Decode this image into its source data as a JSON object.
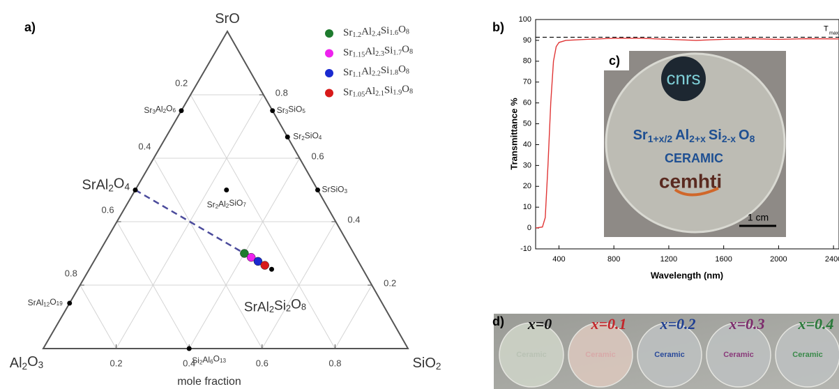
{
  "panel_labels": {
    "a": "a)",
    "b": "b)",
    "c": "c)",
    "d": "d)"
  },
  "chart_data": [
    {
      "type": "ternary",
      "vertices": {
        "top": "SrO",
        "left": "Al2O3",
        "right": "SiO2"
      },
      "ticks": [
        0.2,
        0.4,
        0.6,
        0.8
      ],
      "axis_label": "mole fraction",
      "compounds": [
        {
          "name": "SrAl2O4",
          "SrO": 0.5,
          "Al2O3": 0.5,
          "SiO2": 0
        },
        {
          "name": "Sr3Al2O6",
          "SrO": 0.75,
          "Al2O3": 0.25,
          "SiO2": 0
        },
        {
          "name": "SrAl12O19",
          "SrO": 0.143,
          "Al2O3": 0.857,
          "SiO2": 0
        },
        {
          "name": "Sr3SiO5",
          "SrO": 0.75,
          "Al2O3": 0,
          "SiO2": 0.25
        },
        {
          "name": "Sr2SiO4",
          "SrO": 0.667,
          "Al2O3": 0,
          "SiO2": 0.333
        },
        {
          "name": "SrSiO3",
          "SrO": 0.5,
          "Al2O3": 0,
          "SiO2": 0.5
        },
        {
          "name": "Sr2Al2SiO7",
          "SrO": 0.5,
          "Al2O3": 0.25,
          "SiO2": 0.25
        },
        {
          "name": "Si2Al6O13",
          "SrO": 0,
          "Al2O3": 0.6,
          "SiO2": 0.4
        },
        {
          "name": "SrAl2Si2O8",
          "SrO": 0.25,
          "Al2O3": 0.25,
          "SiO2": 0.5
        }
      ],
      "series": [
        {
          "name": "Sr1.2Al2.4Si1.6O8",
          "color": "#1e7b2e",
          "SrO": 0.3,
          "Al2O3": 0.3,
          "SiO2": 0.4
        },
        {
          "name": "Sr1.15Al2.3Si1.7O8",
          "color": "#ee22ee",
          "SrO": 0.2875,
          "Al2O3": 0.2875,
          "SiO2": 0.425
        },
        {
          "name": "Sr1.1Al2.2Si1.8O8",
          "color": "#1a2ad0",
          "SrO": 0.275,
          "Al2O3": 0.275,
          "SiO2": 0.45
        },
        {
          "name": "Sr1.05Al2.1Si1.9O8",
          "color": "#d81a1a",
          "SrO": 0.2625,
          "Al2O3": 0.2625,
          "SiO2": 0.475
        }
      ]
    },
    {
      "type": "line",
      "xlabel": "Wavelength (nm)",
      "ylabel": "Transmittance %",
      "x": [
        230,
        280,
        300,
        320,
        340,
        360,
        380,
        400,
        450,
        600,
        800,
        1000,
        1200,
        1400,
        1600,
        1800,
        2000,
        2200,
        2440
      ],
      "series": [
        {
          "color": "#e03535",
          "values": [
            0,
            0.5,
            5,
            30,
            60,
            80,
            87,
            89,
            90,
            90.5,
            91,
            91,
            90.5,
            90,
            90.5,
            90.8,
            90.5,
            90.8,
            90.7
          ]
        }
      ],
      "xlim": [
        230,
        2440
      ],
      "ylim": [
        -10,
        100
      ],
      "xticks": [
        400,
        800,
        1200,
        1600,
        2000,
        2400
      ],
      "yticks": [
        -10,
        0,
        10,
        20,
        30,
        40,
        50,
        60,
        70,
        80,
        90,
        100
      ],
      "reference_line": {
        "label": "T",
        "subscript": "max",
        "value": 91.5
      }
    }
  ],
  "photo_c": {
    "logo_top": "cnrs",
    "formula": [
      [
        "Sr",
        "1+x/2"
      ],
      [
        "Al",
        "2+x"
      ],
      [
        "Si",
        "2-x"
      ],
      [
        "O",
        "8"
      ]
    ],
    "subtitle": "CERAMIC",
    "logo_bottom": "cemhti",
    "scale": "1 cm"
  },
  "photo_d": {
    "samples": [
      {
        "label": "x=0",
        "text": "Ceramic"
      },
      {
        "label": "x=0.1",
        "text": "Ceramic"
      },
      {
        "label": "x=0.2",
        "text": "Ceramic"
      },
      {
        "label": "x=0.3",
        "text": "Ceramic"
      },
      {
        "label": "x=0.4",
        "text": "Ceramic"
      }
    ]
  }
}
